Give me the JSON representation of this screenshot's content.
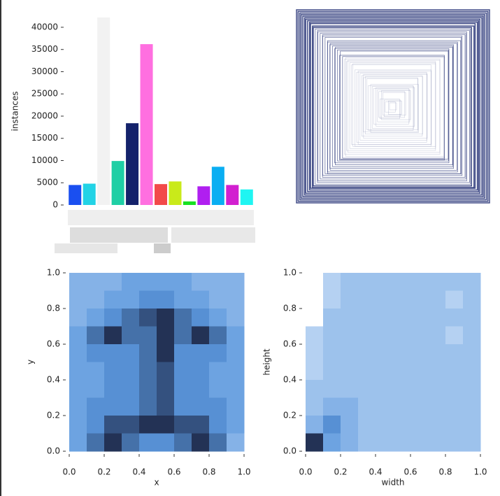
{
  "chart_data": [
    {
      "type": "bar",
      "y_label": "instances",
      "categories": [
        null,
        null,
        null,
        null,
        null,
        null,
        null,
        null,
        null,
        null,
        null,
        null,
        null
      ],
      "values": [
        4500,
        4800,
        42200,
        9900,
        18400,
        36200,
        4700,
        5300,
        800,
        4200,
        8600,
        4500,
        3500
      ],
      "colors": [
        "#1a4ff0",
        "#22d3e6",
        "#f2f2f2",
        "#1fcfa5",
        "#14226b",
        "#ff6fe0",
        "#f24a4a",
        "#c9ea1a",
        "#19e023",
        "#b01ff0",
        "#0aaef2",
        "#d21fd0",
        "#1ff5f2"
      ],
      "ylim": [
        0,
        42200
      ],
      "yticks": [
        0,
        5000,
        10000,
        15000,
        20000,
        25000,
        30000,
        35000,
        40000
      ]
    },
    {
      "type": "heatmap",
      "x_label": "x",
      "y_label": "y",
      "xlim": [
        0,
        1
      ],
      "ylim": [
        0,
        1
      ],
      "xticks": [
        {
          "value": 0,
          "label": "0.0"
        },
        {
          "value": 0.2,
          "label": "0.2"
        },
        {
          "value": 0.4,
          "label": "0.4"
        },
        {
          "value": 0.6,
          "label": "0.6"
        },
        {
          "value": 0.8,
          "label": "0.8"
        },
        {
          "value": 1,
          "label": "1.0"
        }
      ],
      "yticks": [
        {
          "value": 0,
          "label": "0.0"
        },
        {
          "value": 0.2,
          "label": "0.2"
        },
        {
          "value": 0.4,
          "label": "0.4"
        },
        {
          "value": 0.6,
          "label": "0.6"
        },
        {
          "value": 0.8,
          "label": "0.8"
        },
        {
          "value": 1,
          "label": "1.0"
        }
      ],
      "values": [
        [
          3,
          3,
          3,
          4,
          4,
          4,
          4,
          3,
          3,
          3
        ],
        [
          3,
          3,
          4,
          4,
          5,
          5,
          4,
          4,
          3,
          3
        ],
        [
          3,
          4,
          5,
          6,
          7,
          8,
          6,
          5,
          4,
          3
        ],
        [
          4,
          6,
          8,
          6,
          6,
          8,
          6,
          8,
          6,
          4
        ],
        [
          4,
          5,
          5,
          5,
          6,
          8,
          5,
          5,
          5,
          4
        ],
        [
          4,
          4,
          5,
          5,
          6,
          7,
          5,
          5,
          4,
          4
        ],
        [
          4,
          4,
          5,
          5,
          6,
          7,
          5,
          5,
          4,
          4
        ],
        [
          4,
          5,
          5,
          5,
          6,
          7,
          5,
          5,
          5,
          4
        ],
        [
          4,
          5,
          7,
          7,
          8,
          8,
          7,
          7,
          5,
          4
        ],
        [
          4,
          6,
          8,
          6,
          5,
          5,
          6,
          8,
          6,
          3
        ]
      ]
    },
    {
      "type": "heatmap",
      "x_label": "width",
      "y_label": "height",
      "xlim": [
        0,
        1
      ],
      "ylim": [
        0,
        1
      ],
      "xticks": [
        {
          "value": 0,
          "label": "0.0"
        },
        {
          "value": 0.2,
          "label": "0.2"
        },
        {
          "value": 0.4,
          "label": "0.4"
        },
        {
          "value": 0.6,
          "label": "0.6"
        },
        {
          "value": 0.8,
          "label": "0.8"
        },
        {
          "value": 1,
          "label": "1.0"
        }
      ],
      "yticks": [
        {
          "value": 0,
          "label": "0.0"
        },
        {
          "value": 0.2,
          "label": "0.2"
        },
        {
          "value": 0.4,
          "label": "0.4"
        },
        {
          "value": 0.6,
          "label": "0.6"
        },
        {
          "value": 0.8,
          "label": "0.8"
        },
        {
          "value": 1,
          "label": "1.0"
        }
      ],
      "values": [
        [
          0,
          1,
          2,
          2,
          2,
          2,
          2,
          2,
          2,
          2
        ],
        [
          0,
          1,
          2,
          2,
          2,
          2,
          2,
          2,
          1,
          2
        ],
        [
          0,
          2,
          2,
          2,
          2,
          2,
          2,
          2,
          2,
          2
        ],
        [
          1,
          2,
          2,
          2,
          2,
          2,
          2,
          2,
          1,
          2
        ],
        [
          1,
          2,
          2,
          2,
          2,
          2,
          2,
          2,
          2,
          2
        ],
        [
          1,
          2,
          2,
          2,
          2,
          2,
          2,
          2,
          2,
          2
        ],
        [
          2,
          2,
          2,
          2,
          2,
          2,
          2,
          2,
          2,
          2
        ],
        [
          2,
          3,
          3,
          2,
          2,
          2,
          2,
          2,
          2,
          2
        ],
        [
          3,
          5,
          3,
          2,
          2,
          2,
          2,
          2,
          2,
          2
        ],
        [
          8,
          4,
          3,
          2,
          2,
          2,
          2,
          2,
          2,
          2
        ]
      ]
    }
  ]
}
